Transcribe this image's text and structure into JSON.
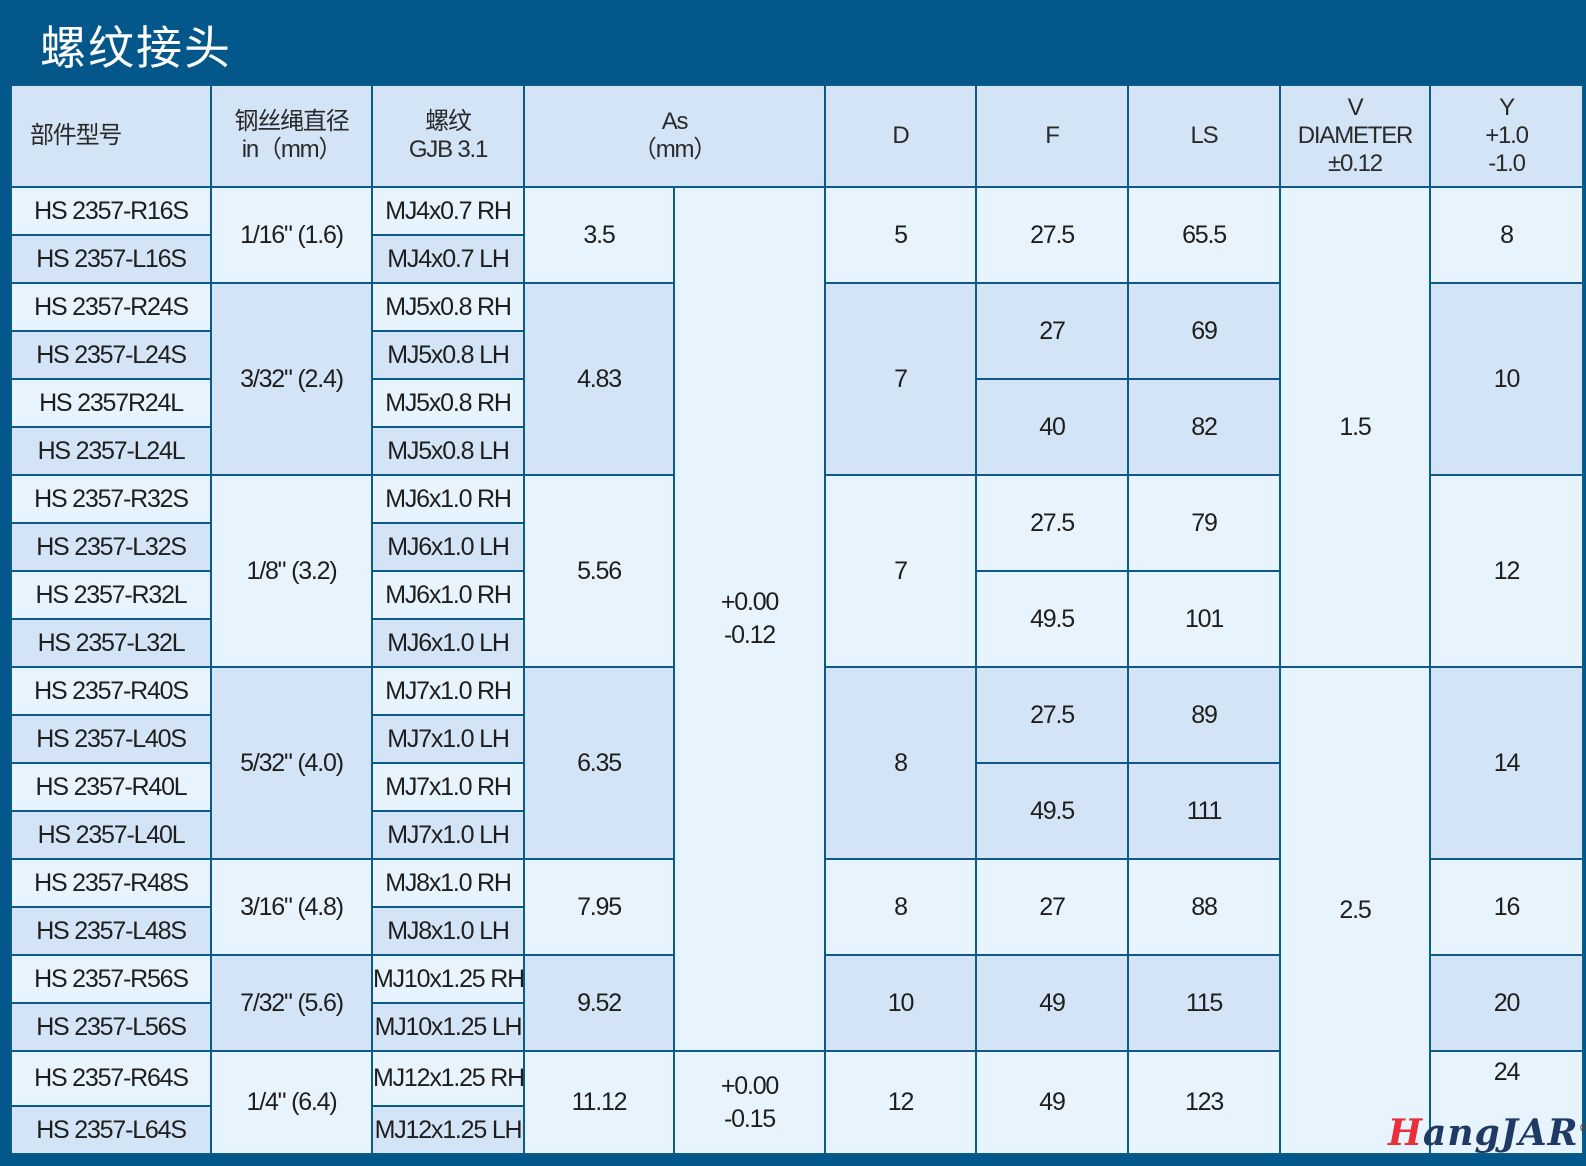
{
  "title": "螺纹接头",
  "headers": [
    "部件型号",
    "钢丝绳直径\nin（mm）",
    "螺纹\nGJB 3.1",
    "As\n（mm）",
    "D",
    "F",
    "LS",
    "V\nDIAMETER\n±0.12",
    "Y\n+1.0\n-1.0"
  ],
  "rows": [
    {
      "part": "HS 2357-R16S",
      "thread": "MJ4x0.7 RH"
    },
    {
      "part": "HS 2357-L16S",
      "thread": "MJ4x0.7 LH"
    },
    {
      "part": "HS 2357-R24S",
      "thread": "MJ5x0.8 RH"
    },
    {
      "part": "HS 2357-L24S",
      "thread": "MJ5x0.8 LH"
    },
    {
      "part": "HS 2357R24L",
      "thread": "MJ5x0.8 RH"
    },
    {
      "part": "HS 2357-L24L",
      "thread": "MJ5x0.8 LH"
    },
    {
      "part": "HS 2357-R32S",
      "thread": "MJ6x1.0 RH"
    },
    {
      "part": "HS 2357-L32S",
      "thread": "MJ6x1.0 LH"
    },
    {
      "part": "HS 2357-R32L",
      "thread": "MJ6x1.0 RH"
    },
    {
      "part": "HS 2357-L32L",
      "thread": "MJ6x1.0 LH"
    },
    {
      "part": "HS 2357-R40S",
      "thread": "MJ7x1.0 RH"
    },
    {
      "part": "HS 2357-L40S",
      "thread": "MJ7x1.0 LH"
    },
    {
      "part": "HS 2357-R40L",
      "thread": "MJ7x1.0 RH"
    },
    {
      "part": "HS 2357-L40L",
      "thread": "MJ7x1.0 LH"
    },
    {
      "part": "HS 2357-R48S",
      "thread": "MJ8x1.0 RH"
    },
    {
      "part": "HS 2357-L48S",
      "thread": "MJ8x1.0 LH"
    },
    {
      "part": "HS 2357-R56S",
      "thread": "MJ10x1.25 RH"
    },
    {
      "part": "HS 2357-L56S",
      "thread": "MJ10x1.25 LH"
    },
    {
      "part": "HS 2357-R64S",
      "thread": "MJ12x1.25 RH"
    },
    {
      "part": "HS 2357-L64S",
      "thread": "MJ12x1.25 LH"
    }
  ],
  "groups": [
    {
      "diameter": "1/16\" (1.6)",
      "as": "3.5",
      "d": "5",
      "y": "8",
      "f_ls": [
        {
          "f": "27.5",
          "ls": "65.5"
        }
      ]
    },
    {
      "diameter": "3/32\" (2.4)",
      "as": "4.83",
      "d": "7",
      "y": "10",
      "f_ls": [
        {
          "f": "27",
          "ls": "69"
        },
        {
          "f": "40",
          "ls": "82"
        }
      ]
    },
    {
      "diameter": "1/8\" (3.2)",
      "as": "5.56",
      "d": "7",
      "y": "12",
      "f_ls": [
        {
          "f": "27.5",
          "ls": "79"
        },
        {
          "f": "49.5",
          "ls": "101"
        }
      ]
    },
    {
      "diameter": "5/32\" (4.0)",
      "as": "6.35",
      "d": "8",
      "y": "14",
      "f_ls": [
        {
          "f": "27.5",
          "ls": "89"
        },
        {
          "f": "49.5",
          "ls": "111"
        }
      ]
    },
    {
      "diameter": "3/16\" (4.8)",
      "as": "7.95",
      "d": "8",
      "y": "16",
      "f_ls": [
        {
          "f": "27",
          "ls": "88"
        }
      ]
    },
    {
      "diameter": "7/32\" (5.6)",
      "as": "9.52",
      "d": "10",
      "y": "20",
      "f_ls": [
        {
          "f": "49",
          "ls": "115"
        }
      ]
    },
    {
      "diameter": "1/4\" (6.4)",
      "as": "11.12",
      "d": "12",
      "y": "24",
      "f_ls": [
        {
          "f": "49",
          "ls": "123"
        }
      ]
    }
  ],
  "as_tolerances": [
    "+0.00\n-0.12",
    "+0.00\n-0.15"
  ],
  "v_diameters": [
    "1.5",
    "2.5"
  ],
  "logo": {
    "text": "HangJAR",
    "mark": "®"
  },
  "colors": {
    "frame": "#04578a",
    "border": "#0b5a87",
    "cell_light": "#e8f4fd",
    "cell_dark": "#d2e4f5",
    "logo_red": "#e8303a",
    "logo_blue": "#1f3a64"
  }
}
